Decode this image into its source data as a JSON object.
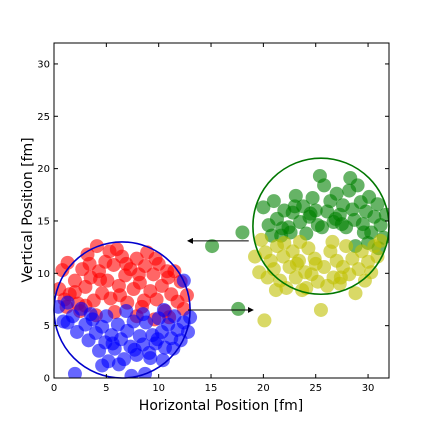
{
  "chart_data": {
    "type": "scatter",
    "title": "",
    "xlabel": "Horizontal Position [fm]",
    "ylabel": "Vertical Position [fm]",
    "xlim": [
      0,
      32
    ],
    "ylim": [
      0,
      32
    ],
    "x_ticks": [
      0,
      5,
      10,
      15,
      20,
      25,
      30
    ],
    "y_ticks": [
      0,
      5,
      10,
      15,
      20,
      25,
      30
    ],
    "grid": false,
    "legend": "none",
    "colors": {
      "red": "#ff0000",
      "blue": "#0000ff",
      "green": "#008000",
      "yellow": "#bfbf00",
      "circle_blue": "#0000cc",
      "circle_green": "#007700"
    },
    "circles": [
      {
        "cx": 6.5,
        "cy": 6.5,
        "r": 6.5,
        "color": "circle_blue"
      },
      {
        "cx": 25.5,
        "cy": 14.5,
        "r": 6.5,
        "color": "circle_green"
      }
    ],
    "arrows": [
      {
        "from": [
          18.6,
          13.1
        ],
        "to": [
          12.8,
          13.1
        ]
      },
      {
        "from": [
          12.8,
          6.5
        ],
        "to": [
          19.0,
          6.5
        ]
      }
    ],
    "series": [
      {
        "color": "red",
        "points": [
          [
            0.5,
            8.5
          ],
          [
            0.8,
            10.3
          ],
          [
            1.2,
            6.8
          ],
          [
            1.5,
            8.0
          ],
          [
            2.0,
            9.3
          ],
          [
            2.3,
            7.1
          ],
          [
            2.7,
            10.4
          ],
          [
            3.0,
            8.7
          ],
          [
            3.2,
            11.8
          ],
          [
            3.5,
            9.6
          ],
          [
            3.8,
            7.4
          ],
          [
            4.1,
            12.6
          ],
          [
            4.3,
            10.2
          ],
          [
            4.6,
            8.1
          ],
          [
            4.9,
            11.1
          ],
          [
            5.1,
            9.3
          ],
          [
            5.4,
            7.6
          ],
          [
            5.7,
            10.8
          ],
          [
            6.0,
            12.3
          ],
          [
            6.2,
            8.8
          ],
          [
            6.5,
            11.6
          ],
          [
            6.8,
            9.8
          ],
          [
            7.0,
            7.2
          ],
          [
            7.3,
            10.4
          ],
          [
            7.6,
            8.5
          ],
          [
            7.9,
            11.4
          ],
          [
            8.2,
            9.1
          ],
          [
            8.4,
            6.8
          ],
          [
            8.7,
            10.7
          ],
          [
            8.9,
            12.0
          ],
          [
            9.2,
            8.3
          ],
          [
            9.5,
            9.9
          ],
          [
            9.8,
            7.5
          ],
          [
            10.0,
            10.9
          ],
          [
            10.3,
            8.8
          ],
          [
            10.6,
            6.4
          ],
          [
            10.9,
            9.6
          ],
          [
            11.2,
            8.0
          ],
          [
            11.5,
            10.2
          ],
          [
            11.8,
            7.3
          ],
          [
            12.1,
            9.2
          ],
          [
            12.4,
            6.6
          ],
          [
            12.7,
            7.9
          ],
          [
            11.0,
            5.8
          ],
          [
            9.6,
            5.6
          ],
          [
            7.9,
            5.9
          ],
          [
            5.8,
            6.3
          ],
          [
            4.0,
            6.0
          ],
          [
            2.5,
            6.4
          ],
          [
            1.3,
            11.0
          ],
          [
            3.4,
            10.9
          ],
          [
            5.3,
            12.1
          ],
          [
            6.9,
            10.9
          ],
          [
            8.1,
            9.9
          ],
          [
            9.7,
            11.4
          ],
          [
            10.8,
            10.2
          ],
          [
            2.0,
            8.2
          ],
          [
            4.4,
            9.4
          ],
          [
            6.3,
            7.9
          ],
          [
            8.6,
            7.4
          ],
          [
            1.0,
            7.5
          ],
          [
            3.0,
            6.9
          ]
        ]
      },
      {
        "color": "blue",
        "points": [
          [
            0.4,
            6.8
          ],
          [
            0.9,
            5.4
          ],
          [
            1.3,
            7.2
          ],
          [
            1.8,
            5.9
          ],
          [
            2.2,
            4.4
          ],
          [
            2.6,
            6.6
          ],
          [
            3.0,
            5.1
          ],
          [
            3.3,
            3.6
          ],
          [
            3.7,
            5.6
          ],
          [
            4.0,
            4.3
          ],
          [
            4.3,
            2.6
          ],
          [
            4.6,
            4.9
          ],
          [
            4.9,
            3.4
          ],
          [
            5.2,
            1.6
          ],
          [
            5.5,
            4.1
          ],
          [
            5.8,
            2.8
          ],
          [
            6.1,
            5.1
          ],
          [
            6.4,
            3.7
          ],
          [
            6.7,
            1.8
          ],
          [
            7.0,
            4.5
          ],
          [
            7.3,
            3.0
          ],
          [
            7.6,
            5.4
          ],
          [
            7.9,
            2.2
          ],
          [
            8.2,
            4.0
          ],
          [
            8.5,
            3.2
          ],
          [
            8.8,
            5.3
          ],
          [
            9.1,
            2.4
          ],
          [
            9.4,
            4.1
          ],
          [
            9.7,
            3.3
          ],
          [
            10.0,
            5.7
          ],
          [
            10.3,
            4.4
          ],
          [
            10.6,
            2.9
          ],
          [
            10.9,
            5.1
          ],
          [
            11.2,
            3.8
          ],
          [
            11.5,
            5.9
          ],
          [
            11.8,
            4.6
          ],
          [
            12.1,
            3.6
          ],
          [
            12.4,
            5.3
          ],
          [
            12.8,
            4.4
          ],
          [
            13.0,
            5.8
          ],
          [
            2.0,
            0.4
          ],
          [
            4.6,
            1.2
          ],
          [
            6.2,
            1.3
          ],
          [
            7.4,
            0.2
          ],
          [
            8.7,
            0.4
          ],
          [
            9.2,
            1.9
          ],
          [
            10.4,
            1.7
          ],
          [
            11.4,
            2.8
          ],
          [
            1.3,
            5.3
          ],
          [
            5.0,
            5.9
          ],
          [
            6.9,
            6.4
          ],
          [
            8.5,
            6.1
          ],
          [
            3.5,
            6.1
          ],
          [
            12.4,
            9.3
          ],
          [
            10.5,
            6.5
          ],
          [
            5.6,
            3.3
          ],
          [
            7.7,
            2.7
          ],
          [
            9.9,
            3.7
          ]
        ]
      },
      {
        "color": "green",
        "points": [
          [
            15.1,
            12.6
          ],
          [
            18.0,
            13.9
          ],
          [
            17.6,
            6.6
          ],
          [
            20.0,
            16.3
          ],
          [
            20.5,
            14.6
          ],
          [
            21.0,
            16.9
          ],
          [
            21.3,
            15.2
          ],
          [
            21.7,
            13.6
          ],
          [
            22.0,
            16.0
          ],
          [
            22.4,
            14.4
          ],
          [
            22.8,
            15.8
          ],
          [
            23.1,
            17.4
          ],
          [
            23.5,
            14.9
          ],
          [
            23.8,
            16.4
          ],
          [
            24.1,
            13.8
          ],
          [
            24.4,
            15.4
          ],
          [
            24.7,
            17.2
          ],
          [
            25.0,
            16.0
          ],
          [
            25.2,
            14.6
          ],
          [
            25.4,
            19.3
          ],
          [
            25.8,
            18.4
          ],
          [
            26.1,
            15.9
          ],
          [
            26.4,
            16.9
          ],
          [
            26.7,
            14.9
          ],
          [
            27.0,
            17.6
          ],
          [
            27.3,
            15.6
          ],
          [
            27.6,
            16.5
          ],
          [
            27.9,
            14.4
          ],
          [
            28.2,
            17.9
          ],
          [
            28.5,
            16.1
          ],
          [
            28.7,
            15.1
          ],
          [
            29.0,
            18.4
          ],
          [
            29.3,
            16.8
          ],
          [
            29.5,
            14.7
          ],
          [
            29.8,
            15.9
          ],
          [
            30.1,
            17.3
          ],
          [
            30.3,
            13.9
          ],
          [
            30.6,
            15.4
          ],
          [
            30.9,
            16.6
          ],
          [
            31.2,
            14.6
          ],
          [
            31.5,
            13.4
          ],
          [
            31.7,
            15.6
          ],
          [
            28.3,
            19.1
          ],
          [
            26.9,
            15.2
          ],
          [
            24.5,
            15.7
          ],
          [
            23.0,
            16.4
          ],
          [
            21.8,
            14.3
          ],
          [
            30.0,
            12.9
          ],
          [
            31.0,
            12.4
          ],
          [
            29.6,
            13.9
          ],
          [
            27.5,
            14.7
          ],
          [
            25.6,
            14.4
          ],
          [
            22.6,
            13.9
          ],
          [
            20.8,
            13.6
          ],
          [
            28.8,
            12.6
          ]
        ]
      },
      {
        "color": "yellow",
        "points": [
          [
            20.1,
            5.5
          ],
          [
            19.2,
            11.6
          ],
          [
            19.6,
            10.1
          ],
          [
            19.8,
            13.2
          ],
          [
            20.2,
            12.0
          ],
          [
            20.4,
            9.6
          ],
          [
            20.7,
            11.2
          ],
          [
            21.0,
            10.4
          ],
          [
            21.3,
            12.6
          ],
          [
            21.6,
            9.3
          ],
          [
            21.9,
            11.6
          ],
          [
            22.2,
            8.6
          ],
          [
            22.5,
            10.6
          ],
          [
            22.8,
            12.1
          ],
          [
            23.1,
            9.6
          ],
          [
            23.4,
            11.2
          ],
          [
            23.7,
            8.4
          ],
          [
            24.0,
            10.1
          ],
          [
            24.3,
            12.4
          ],
          [
            24.6,
            9.9
          ],
          [
            24.9,
            11.4
          ],
          [
            25.2,
            9.2
          ],
          [
            25.5,
            6.5
          ],
          [
            25.8,
            10.6
          ],
          [
            26.1,
            8.8
          ],
          [
            26.4,
            12.1
          ],
          [
            26.7,
            9.6
          ],
          [
            27.0,
            11.2
          ],
          [
            27.3,
            9.0
          ],
          [
            27.6,
            10.6
          ],
          [
            27.9,
            12.6
          ],
          [
            28.2,
            9.9
          ],
          [
            28.5,
            11.4
          ],
          [
            28.8,
            8.1
          ],
          [
            29.1,
            10.4
          ],
          [
            29.4,
            12.1
          ],
          [
            29.7,
            9.3
          ],
          [
            30.0,
            11.1
          ],
          [
            30.3,
            10.1
          ],
          [
            30.6,
            12.6
          ],
          [
            30.9,
            11.6
          ],
          [
            31.2,
            13.1
          ],
          [
            22.0,
            12.9
          ],
          [
            23.5,
            13.0
          ],
          [
            26.6,
            13.0
          ],
          [
            21.2,
            8.4
          ],
          [
            25.0,
            10.9
          ],
          [
            27.4,
            9.6
          ],
          [
            24.1,
            8.6
          ],
          [
            23.2,
            10.9
          ]
        ]
      }
    ]
  }
}
